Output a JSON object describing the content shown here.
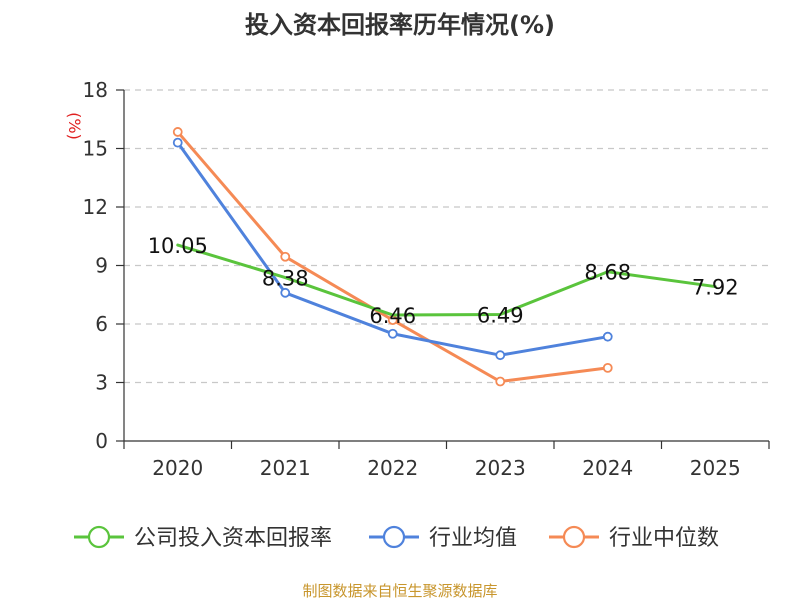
{
  "chart_data": {
    "type": "line",
    "title": "投入资本回报率历年情况(%)",
    "ylabel": "(%)",
    "xlabel": "",
    "categories": [
      "2020",
      "2021",
      "2022",
      "2023",
      "2024",
      "2025"
    ],
    "ylim": [
      0,
      18
    ],
    "yticks": [
      0,
      3,
      6,
      9,
      12,
      15,
      18
    ],
    "grid": true,
    "legend_position": "bottom",
    "series": [
      {
        "name": "公司投入资本回报率",
        "color": "#5ac43c",
        "values": [
          10.05,
          8.38,
          6.46,
          6.49,
          8.68,
          7.92
        ],
        "labels": [
          "10.05",
          "8.38",
          "6.46",
          "6.49",
          "8.68",
          "7.92"
        ]
      },
      {
        "name": "行业均值",
        "color": "#4f82dc",
        "values": [
          15.3,
          7.6,
          5.5,
          4.4,
          5.35,
          null
        ]
      },
      {
        "name": "行业中位数",
        "color": "#f58a55",
        "values": [
          15.85,
          9.45,
          6.2,
          3.05,
          3.75,
          null
        ]
      }
    ],
    "source": "制图数据来自恒生聚源数据库"
  }
}
